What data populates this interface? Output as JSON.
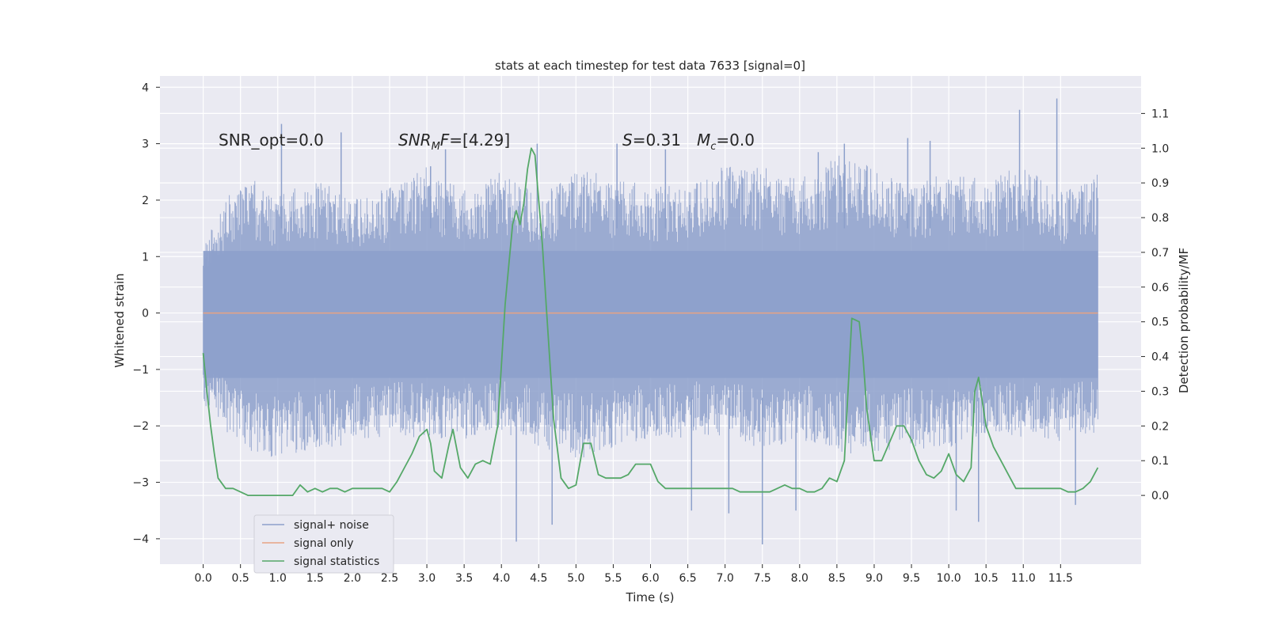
{
  "chart_data": {
    "type": "line",
    "title": "stats at each timestep for test data 7633 [signal=0]",
    "xlabel": "Time (s)",
    "ylabel": "Whitened strain",
    "ylabel_right": "Detection probability/MF",
    "xlim": [
      -0.58,
      12.58
    ],
    "ylim": [
      -4.45,
      4.2
    ],
    "ylim_right": [
      -0.198,
      1.208
    ],
    "x_ticks": [
      "0.0",
      "0.5",
      "1.0",
      "1.5",
      "2.0",
      "2.5",
      "3.0",
      "3.5",
      "4.0",
      "4.5",
      "5.0",
      "5.5",
      "6.0",
      "6.5",
      "7.0",
      "7.5",
      "8.0",
      "8.5",
      "9.0",
      "9.5",
      "10.0",
      "10.5",
      "11.0",
      "11.5"
    ],
    "y_ticks": [
      "4",
      "3",
      "2",
      "1",
      "0",
      "−1",
      "−2",
      "−3",
      "−4"
    ],
    "y_right_ticks": [
      "1.1",
      "1.0",
      "0.9",
      "0.8",
      "0.7",
      "0.6",
      "0.5",
      "0.4",
      "0.3",
      "0.2",
      "0.1",
      "0.0"
    ],
    "annotations": {
      "snr_opt": "SNR_opt=0.0",
      "snr_mf": "=[4.29]",
      "s_val": "=0.31",
      "mc_val": "=0.0"
    },
    "grid": true,
    "legend_position": "lower-left",
    "series": [
      {
        "name": "signal+ noise",
        "color": "#8da0cb",
        "band_hi": [
          1.2,
          2.5,
          2.1,
          2.4,
          2.0,
          2.3,
          2.6,
          2.2,
          2.5,
          2.1,
          2.6,
          2.4,
          2.3,
          2.2,
          2.7,
          2.6,
          2.4,
          2.8,
          2.6,
          2.3,
          2.5,
          2.4,
          2.6,
          2.2,
          2.5
        ],
        "band_lo": [
          -1.6,
          -2.4,
          -2.6,
          -2.5,
          -2.3,
          -2.2,
          -2.2,
          -2.3,
          -2.1,
          -2.4,
          -2.6,
          -2.4,
          -2.3,
          -2.2,
          -2.2,
          -2.4,
          -2.3,
          -2.5,
          -2.5,
          -2.4,
          -2.4,
          -2.2,
          -2.2,
          -2.3,
          -2.1
        ],
        "band_x": [
          0.0,
          0.5,
          1.0,
          1.5,
          2.0,
          2.5,
          3.0,
          3.5,
          4.0,
          4.5,
          5.0,
          5.5,
          6.0,
          6.5,
          7.0,
          7.5,
          8.0,
          8.5,
          9.0,
          9.5,
          10.0,
          10.5,
          11.0,
          11.5,
          12.0
        ],
        "spikes_x": [
          1.05,
          1.85,
          3.05,
          3.25,
          4.2,
          4.48,
          4.68,
          5.55,
          6.2,
          6.55,
          7.05,
          7.5,
          7.95,
          8.25,
          8.6,
          9.45,
          9.75,
          10.1,
          10.4,
          10.95,
          11.45,
          11.7
        ],
        "spikes_y": [
          3.35,
          3.2,
          2.6,
          2.9,
          -4.05,
          3.0,
          -3.75,
          3.0,
          2.9,
          -3.5,
          -3.55,
          -4.1,
          -3.5,
          2.85,
          3.0,
          3.1,
          3.05,
          -3.5,
          -3.7,
          3.6,
          3.8,
          -3.4
        ]
      },
      {
        "name": "signal only",
        "color": "#e8a383",
        "x": [
          0.0,
          12.0
        ],
        "y": [
          0.0,
          0.0
        ]
      },
      {
        "name": "signal statistics",
        "color": "#55a868",
        "axis": "right",
        "x": [
          0.0,
          0.05,
          0.1,
          0.15,
          0.2,
          0.3,
          0.4,
          0.5,
          0.6,
          0.7,
          0.8,
          0.9,
          1.0,
          1.1,
          1.2,
          1.3,
          1.4,
          1.5,
          1.6,
          1.7,
          1.8,
          1.9,
          2.0,
          2.1,
          2.2,
          2.3,
          2.4,
          2.5,
          2.6,
          2.7,
          2.8,
          2.9,
          3.0,
          3.05,
          3.1,
          3.2,
          3.3,
          3.35,
          3.45,
          3.55,
          3.65,
          3.75,
          3.85,
          3.95,
          4.05,
          4.15,
          4.2,
          4.25,
          4.3,
          4.35,
          4.4,
          4.45,
          4.5,
          4.55,
          4.6,
          4.7,
          4.8,
          4.9,
          5.0,
          5.1,
          5.2,
          5.3,
          5.4,
          5.5,
          5.6,
          5.7,
          5.8,
          5.9,
          6.0,
          6.1,
          6.2,
          6.3,
          6.4,
          6.5,
          6.6,
          6.7,
          6.8,
          6.9,
          7.0,
          7.1,
          7.2,
          7.3,
          7.4,
          7.5,
          7.6,
          7.7,
          7.8,
          7.9,
          8.0,
          8.1,
          8.2,
          8.3,
          8.4,
          8.5,
          8.6,
          8.7,
          8.8,
          8.85,
          8.9,
          9.0,
          9.1,
          9.2,
          9.3,
          9.4,
          9.5,
          9.6,
          9.7,
          9.8,
          9.9,
          10.0,
          10.1,
          10.2,
          10.3,
          10.35,
          10.4,
          10.5,
          10.6,
          10.7,
          10.8,
          10.9,
          11.0,
          11.1,
          11.2,
          11.3,
          11.4,
          11.5,
          11.6,
          11.7,
          11.8,
          11.9,
          12.0
        ],
        "y": [
          0.41,
          0.3,
          0.2,
          0.12,
          0.05,
          0.02,
          0.02,
          0.01,
          0.0,
          0.0,
          0.0,
          0.0,
          0.0,
          0.0,
          0.0,
          0.03,
          0.01,
          0.02,
          0.01,
          0.02,
          0.02,
          0.01,
          0.02,
          0.02,
          0.02,
          0.02,
          0.02,
          0.01,
          0.04,
          0.08,
          0.12,
          0.17,
          0.19,
          0.15,
          0.07,
          0.05,
          0.15,
          0.19,
          0.08,
          0.05,
          0.09,
          0.1,
          0.09,
          0.2,
          0.55,
          0.78,
          0.82,
          0.78,
          0.84,
          0.94,
          1.0,
          0.98,
          0.85,
          0.72,
          0.55,
          0.22,
          0.05,
          0.02,
          0.03,
          0.15,
          0.15,
          0.06,
          0.05,
          0.05,
          0.05,
          0.06,
          0.09,
          0.09,
          0.09,
          0.04,
          0.02,
          0.02,
          0.02,
          0.02,
          0.02,
          0.02,
          0.02,
          0.02,
          0.02,
          0.02,
          0.01,
          0.01,
          0.01,
          0.01,
          0.01,
          0.02,
          0.03,
          0.02,
          0.02,
          0.01,
          0.01,
          0.02,
          0.05,
          0.04,
          0.1,
          0.51,
          0.5,
          0.4,
          0.25,
          0.1,
          0.1,
          0.15,
          0.2,
          0.2,
          0.16,
          0.1,
          0.06,
          0.05,
          0.07,
          0.12,
          0.06,
          0.04,
          0.08,
          0.3,
          0.34,
          0.2,
          0.14,
          0.1,
          0.06,
          0.02,
          0.02,
          0.02,
          0.02,
          0.02,
          0.02,
          0.02,
          0.01,
          0.01,
          0.02,
          0.04,
          0.08
        ]
      }
    ]
  }
}
